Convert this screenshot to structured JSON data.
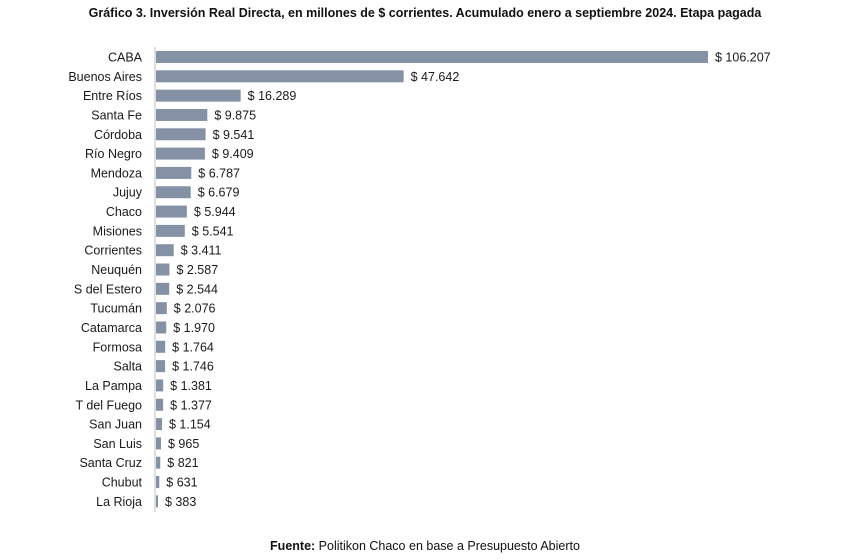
{
  "chart_data": {
    "type": "bar",
    "orientation": "horizontal",
    "title": "Gráfico 3. Inversión Real Directa, en millones de $ corrientes. Acumulado enero a septiembre 2024. Etapa pagada",
    "categories": [
      "CABA",
      "Buenos Aires",
      "Entre Ríos",
      "Santa Fe",
      "Córdoba",
      "Río Negro",
      "Mendoza",
      "Jujuy",
      "Chaco",
      "Misiones",
      "Corrientes",
      "Neuquén",
      "S del Estero",
      "Tucumán",
      "Catamarca",
      "Formosa",
      "Salta",
      "La Pampa",
      "T del Fuego",
      "San Juan",
      "San Luis",
      "Santa Cruz",
      "Chubut",
      "La Rioja"
    ],
    "values": [
      106207,
      47642,
      16289,
      9875,
      9541,
      9409,
      6787,
      6679,
      5944,
      5541,
      3411,
      2587,
      2544,
      2076,
      1970,
      1764,
      1746,
      1381,
      1377,
      1154,
      965,
      821,
      631,
      383
    ],
    "value_labels": [
      "$ 106.207",
      "$ 47.642",
      "$ 16.289",
      "$ 9.875",
      "$ 9.541",
      "$ 9.409",
      "$ 6.787",
      "$ 6.679",
      "$ 5.944",
      "$ 5.541",
      "$ 3.411",
      "$ 2.587",
      "$ 2.544",
      "$ 2.076",
      "$ 1.970",
      "$ 1.764",
      "$ 1.746",
      "$ 1.381",
      "$ 1.377",
      "$ 1.154",
      "$ 965",
      "$ 821",
      "$ 631",
      "$ 383"
    ],
    "bar_color": "#8592a6",
    "xlim": [
      0,
      106207
    ],
    "grid": false,
    "legend": false
  },
  "source": {
    "label": "Fuente:",
    "text": " Politikon Chaco en base a Presupuesto Abierto"
  }
}
